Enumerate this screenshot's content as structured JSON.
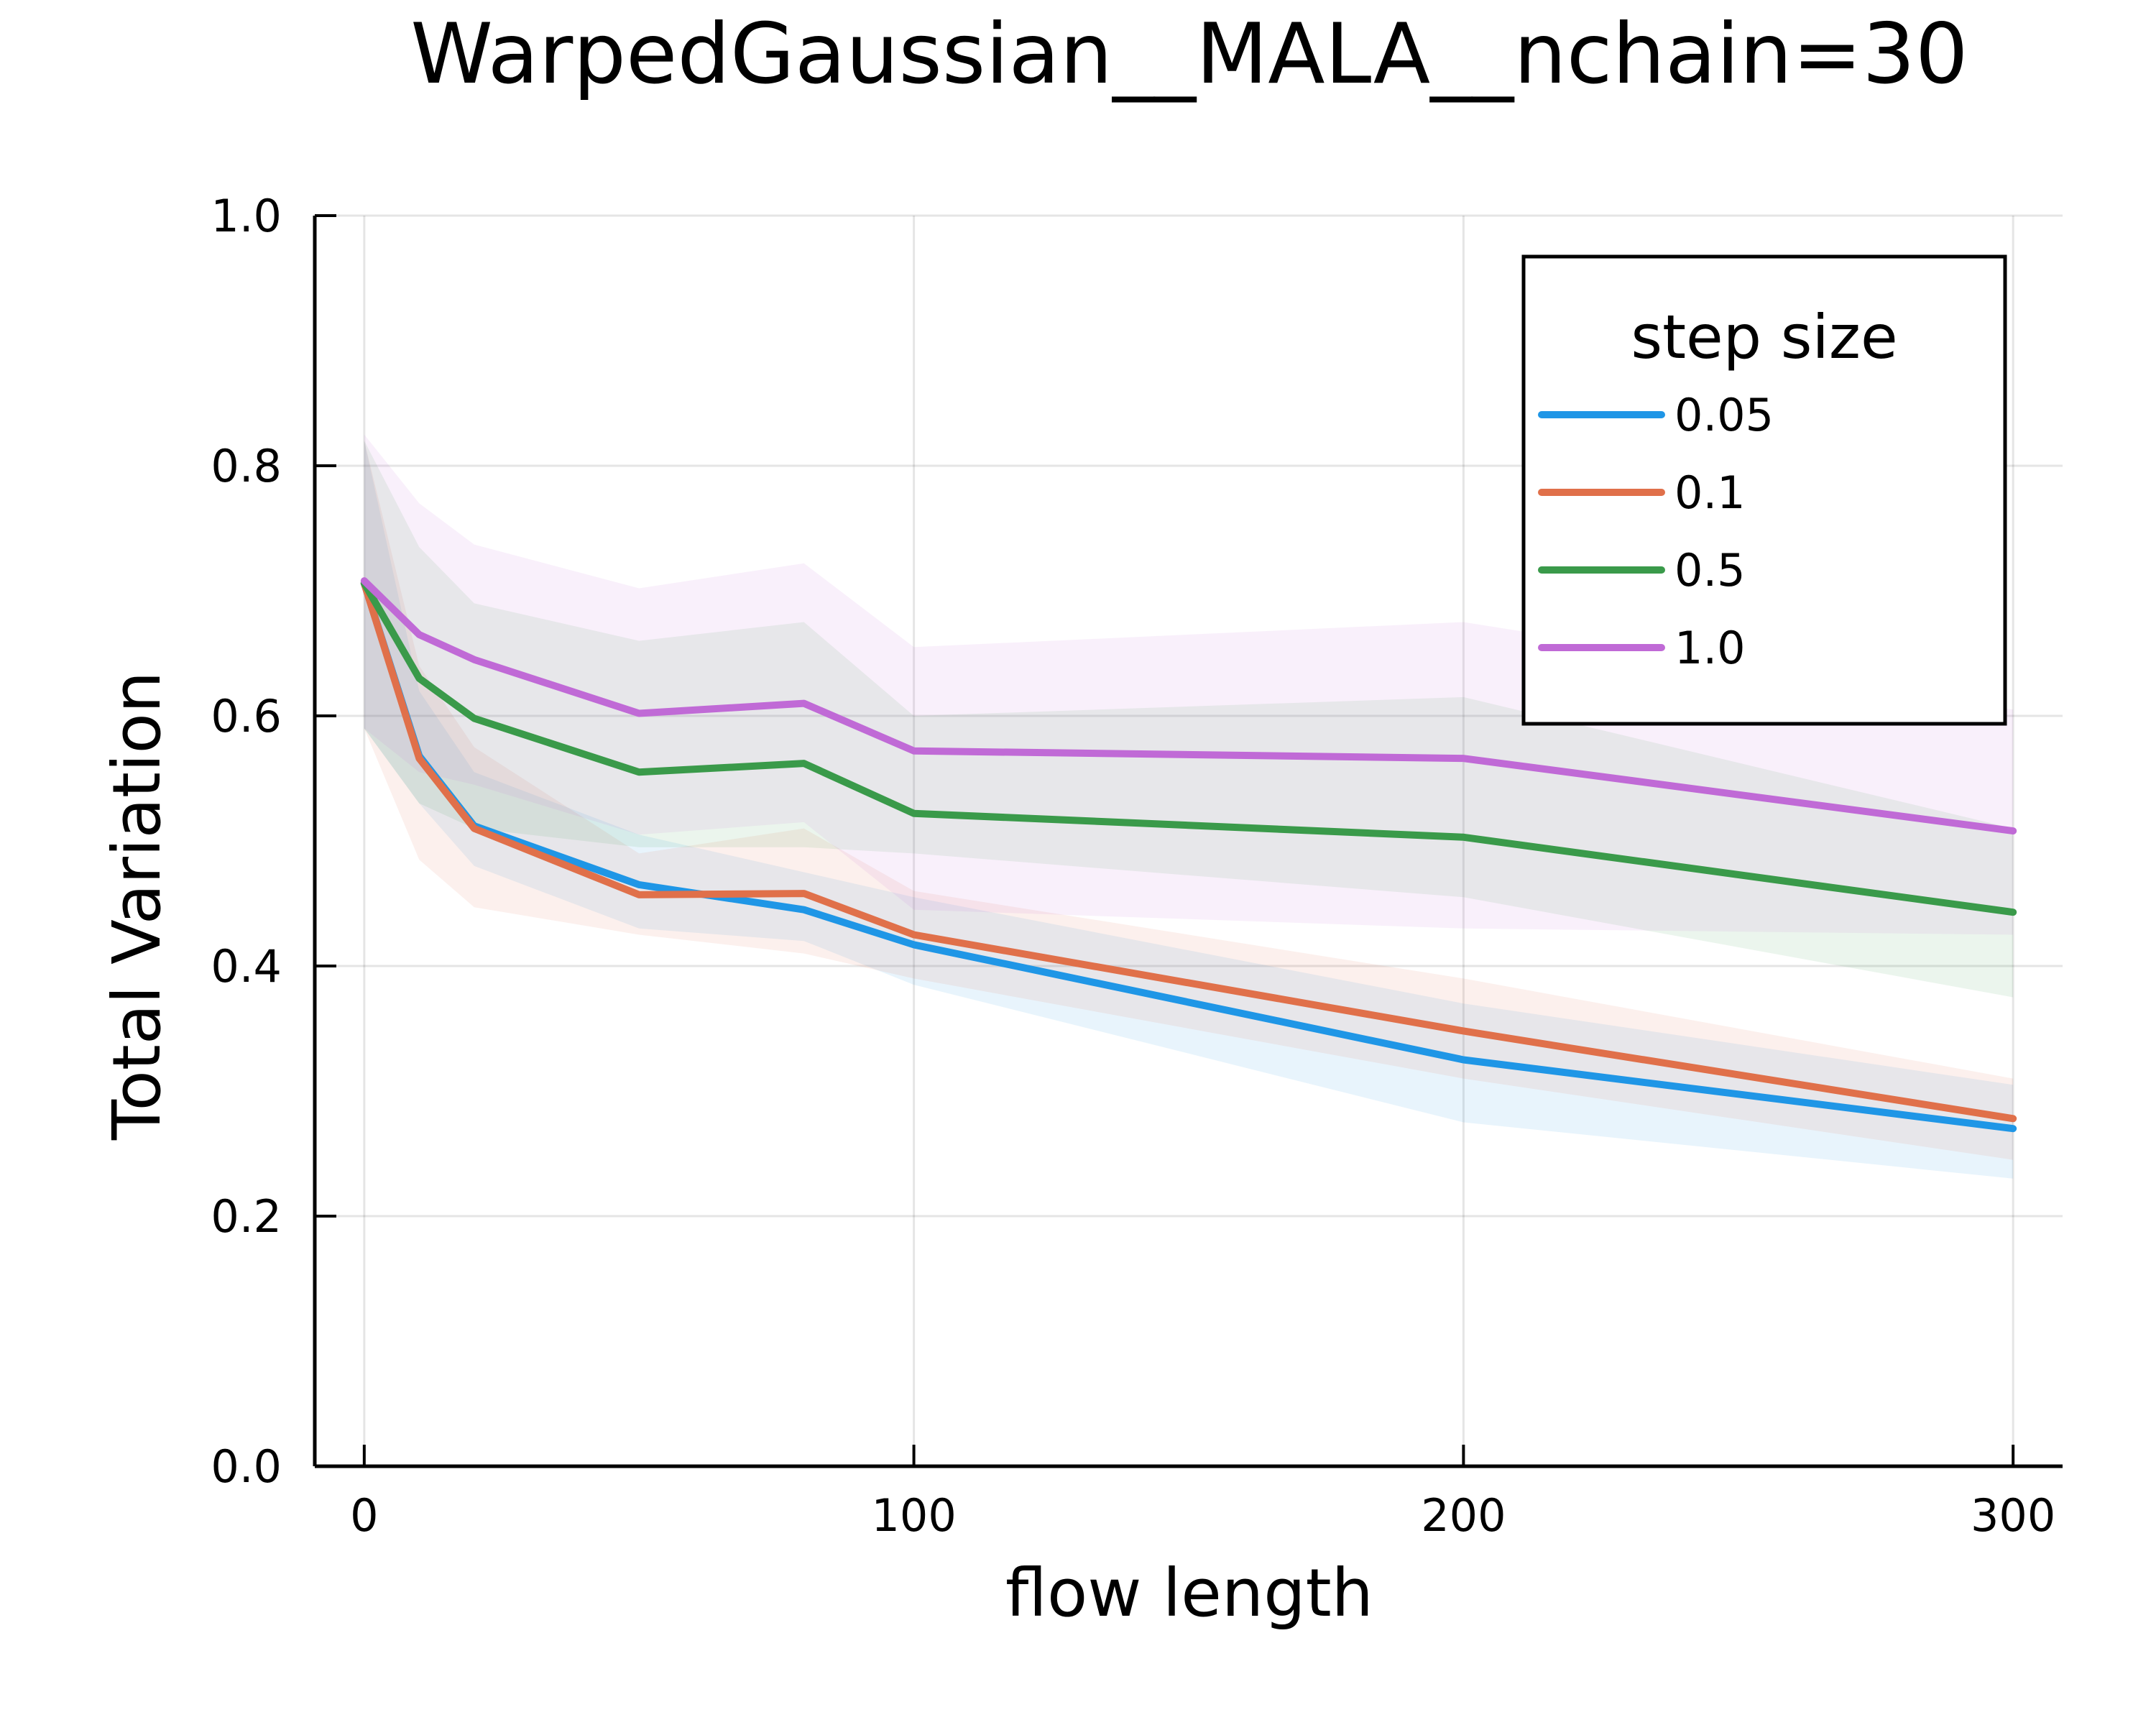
{
  "chart_data": {
    "type": "line",
    "title": "WarpedGaussian__MALA__nchain=30",
    "xlabel": "flow length",
    "ylabel": "Total Variation",
    "xlim": [
      -9,
      309
    ],
    "ylim": [
      0.0,
      1.0
    ],
    "xticks": [
      0,
      100,
      200,
      300
    ],
    "xtick_labels": [
      "0",
      "100",
      "200",
      "300"
    ],
    "yticks": [
      0.0,
      0.2,
      0.4,
      0.6,
      0.8,
      1.0
    ],
    "ytick_labels": [
      "0.0",
      "0.2",
      "0.4",
      "0.6",
      "0.8",
      "1.0"
    ],
    "grid": true,
    "legend": {
      "title": "step size",
      "position": "top-right"
    },
    "x": [
      0,
      10,
      20,
      50,
      80,
      100,
      200,
      300
    ],
    "series": [
      {
        "name": "0.05",
        "color": "#1f96e6",
        "values": [
          0.706,
          0.568,
          0.512,
          0.465,
          0.445,
          0.417,
          0.325,
          0.27
        ],
        "lower": [
          0.59,
          0.53,
          0.48,
          0.43,
          0.42,
          0.385,
          0.275,
          0.23
        ],
        "upper": [
          0.82,
          0.62,
          0.555,
          0.505,
          0.475,
          0.455,
          0.37,
          0.305
        ]
      },
      {
        "name": "0.1",
        "color": "#e0704a",
        "values": [
          0.706,
          0.566,
          0.51,
          0.457,
          0.458,
          0.425,
          0.348,
          0.278
        ],
        "lower": [
          0.59,
          0.485,
          0.447,
          0.425,
          0.41,
          0.39,
          0.31,
          0.245
        ],
        "upper": [
          0.82,
          0.64,
          0.575,
          0.49,
          0.51,
          0.46,
          0.39,
          0.31
        ]
      },
      {
        "name": "0.5",
        "color": "#3a9a4a",
        "values": [
          0.706,
          0.63,
          0.598,
          0.555,
          0.562,
          0.522,
          0.503,
          0.443
        ],
        "lower": [
          0.59,
          0.53,
          0.51,
          0.495,
          0.495,
          0.49,
          0.455,
          0.375
        ],
        "upper": [
          0.82,
          0.735,
          0.69,
          0.66,
          0.675,
          0.6,
          0.615,
          0.51
        ]
      },
      {
        "name": "1.0",
        "color": "#c06ad6",
        "values": [
          0.708,
          0.665,
          0.645,
          0.602,
          0.61,
          0.572,
          0.566,
          0.508
        ],
        "lower": [
          0.59,
          0.555,
          0.545,
          0.505,
          0.515,
          0.445,
          0.43,
          0.425
        ],
        "upper": [
          0.825,
          0.77,
          0.737,
          0.702,
          0.722,
          0.655,
          0.675,
          0.605
        ]
      }
    ]
  }
}
